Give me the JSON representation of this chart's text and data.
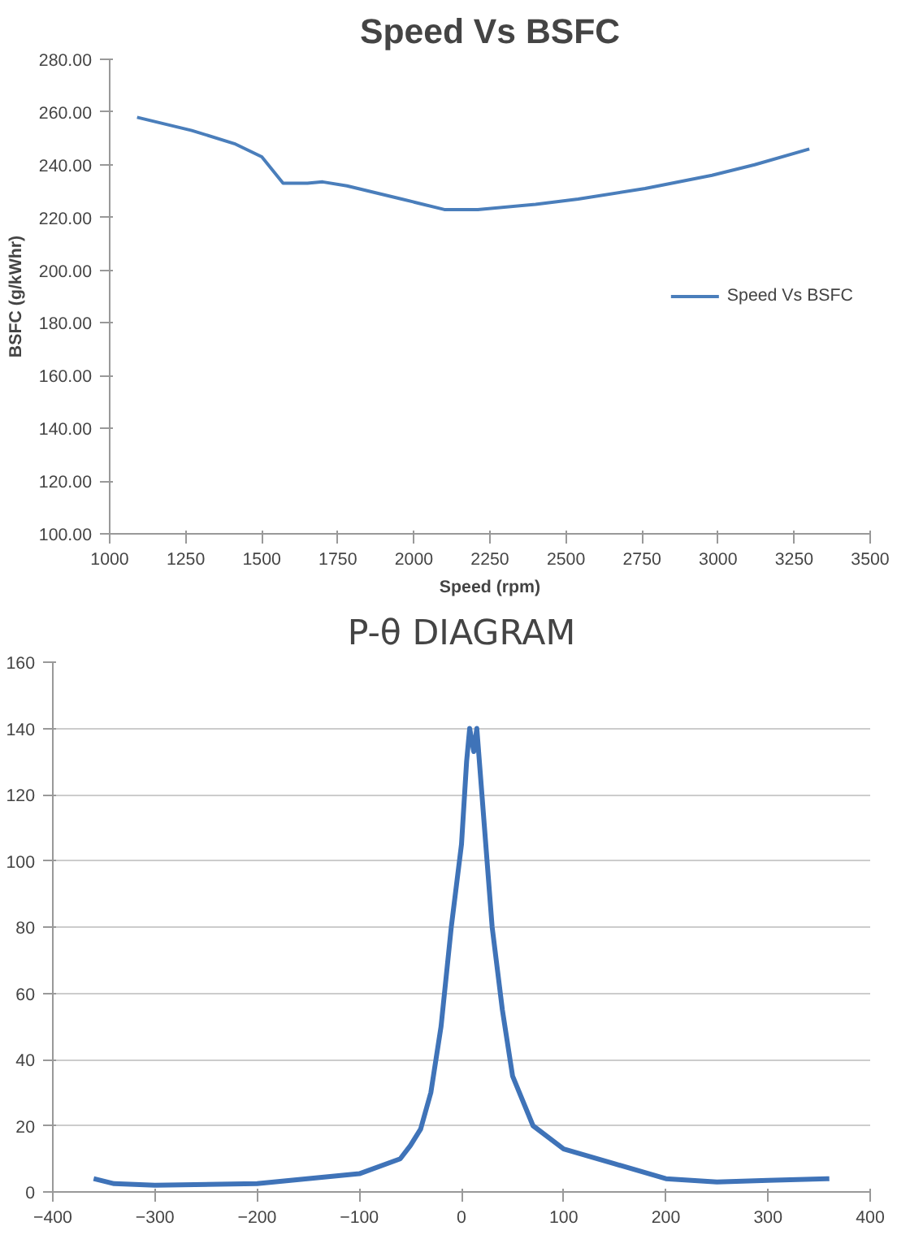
{
  "chart_data": [
    {
      "type": "line",
      "title": "Speed Vs BSFC",
      "xlabel": "Speed (rpm)",
      "ylabel": "BSFC (g/kWhr)",
      "x": [
        1090,
        1270,
        1410,
        1500,
        1570,
        1650,
        1700,
        1780,
        1960,
        2100,
        2210,
        2400,
        2540,
        2760,
        2980,
        3120,
        3300
      ],
      "series": [
        {
          "name": "Speed Vs BSFC",
          "color": "#4a7ebb",
          "values": [
            258,
            253,
            248,
            243,
            233,
            233,
            233.5,
            232,
            227,
            223,
            223,
            225,
            227,
            231,
            236,
            240,
            246
          ]
        }
      ],
      "xlim": [
        1000,
        3500
      ],
      "xticks": [
        1000,
        1250,
        1500,
        1750,
        2000,
        2250,
        2500,
        2750,
        3000,
        3250,
        3500
      ],
      "ylim": [
        100,
        280
      ],
      "yticks": [
        {
          "value": 100,
          "label": "100.00"
        },
        {
          "value": 120,
          "label": "120.00"
        },
        {
          "value": 140,
          "label": "140.00"
        },
        {
          "value": 160,
          "label": "160.00"
        },
        {
          "value": 180,
          "label": "180.00"
        },
        {
          "value": 200,
          "label": "200.00"
        },
        {
          "value": 220,
          "label": "220.00"
        },
        {
          "value": 240,
          "label": "240.00"
        },
        {
          "value": 260,
          "label": "260.00"
        },
        {
          "value": 280,
          "label": "280.00"
        }
      ],
      "grid": false,
      "legend": "right"
    },
    {
      "type": "line",
      "title": "P-θ DIAGRAM",
      "x": [
        -360,
        -340,
        -300,
        -200,
        -100,
        -60,
        -50,
        -40,
        -30,
        -20,
        -10,
        0,
        5,
        8,
        12,
        15,
        20,
        30,
        40,
        50,
        70,
        100,
        150,
        200,
        250,
        300,
        360
      ],
      "series": [
        {
          "color": "#3f73b8",
          "values": [
            4,
            2.5,
            2,
            2.5,
            5.5,
            10,
            14,
            19,
            30,
            50,
            80,
            105,
            130,
            140,
            133,
            140,
            120,
            80,
            55,
            35,
            20,
            13,
            8.5,
            4,
            3,
            3.5,
            4
          ]
        }
      ],
      "xlim": [
        -400,
        400
      ],
      "xticks": [
        -400,
        -300,
        -200,
        -100,
        0,
        100,
        200,
        300,
        400
      ],
      "ylim": [
        0,
        160
      ],
      "yticks": [
        0,
        20,
        40,
        60,
        80,
        100,
        120,
        140,
        160
      ],
      "grid": "y",
      "legend": false
    }
  ]
}
